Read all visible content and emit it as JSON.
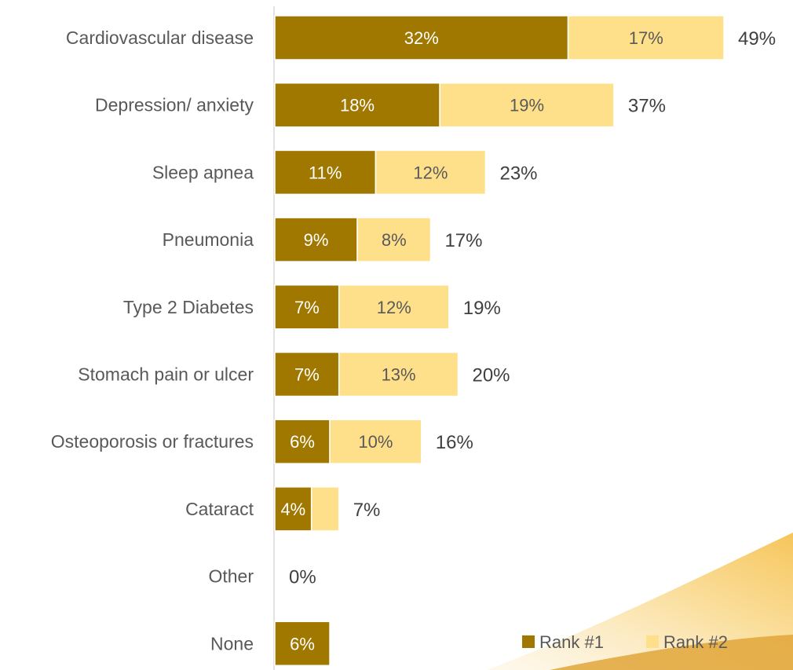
{
  "chart_data": {
    "type": "bar",
    "orientation": "horizontal",
    "stacked": true,
    "categories": [
      "Cardiovascular disease",
      "Depression/ anxiety",
      "Sleep apnea",
      "Pneumonia",
      "Type 2 Diabetes",
      "Stomach pain or ulcer",
      "Osteoporosis or fractures",
      "Cataract",
      "Other",
      "None"
    ],
    "series": [
      {
        "name": "Rank #1",
        "color": "#a07800",
        "values": [
          32,
          18,
          11,
          9,
          7,
          7,
          6,
          4,
          0,
          6
        ],
        "labels": [
          "32%",
          "18%",
          "11%",
          "9%",
          "7%",
          "7%",
          "6%",
          "4%",
          "",
          "6%"
        ]
      },
      {
        "name": "Rank #2",
        "color": "#ffe08a",
        "values": [
          17,
          19,
          12,
          8,
          12,
          13,
          10,
          3,
          0,
          0
        ],
        "labels": [
          "17%",
          "19%",
          "12%",
          "8%",
          "12%",
          "13%",
          "10%",
          "",
          "",
          ""
        ]
      }
    ],
    "totals": [
      "49%",
      "37%",
      "23%",
      "17%",
      "19%",
      "20%",
      "16%",
      "7%",
      "0%",
      ""
    ],
    "xlim": [
      0,
      49
    ],
    "legend": "bottom-right",
    "grid": false
  }
}
